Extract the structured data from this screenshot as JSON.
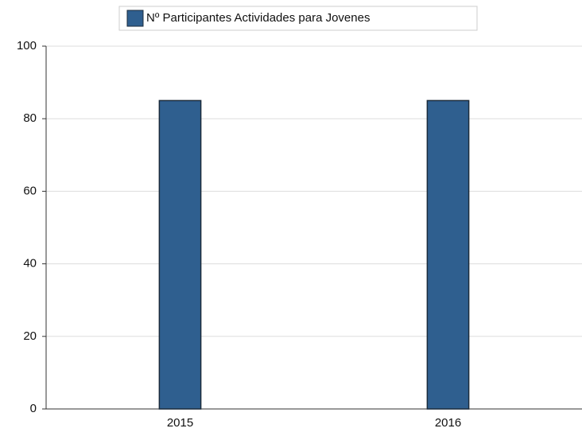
{
  "chart_data": {
    "type": "bar",
    "categories": [
      "2015",
      "2016"
    ],
    "series": [
      {
        "name": "Nº Participantes Actividades para Jovenes",
        "color": "#2f5f8f",
        "values": [
          85,
          85
        ]
      }
    ],
    "ylim": [
      0,
      100
    ],
    "yticks": [
      0,
      20,
      40,
      60,
      80,
      100
    ],
    "grid": true,
    "legend": "top"
  }
}
